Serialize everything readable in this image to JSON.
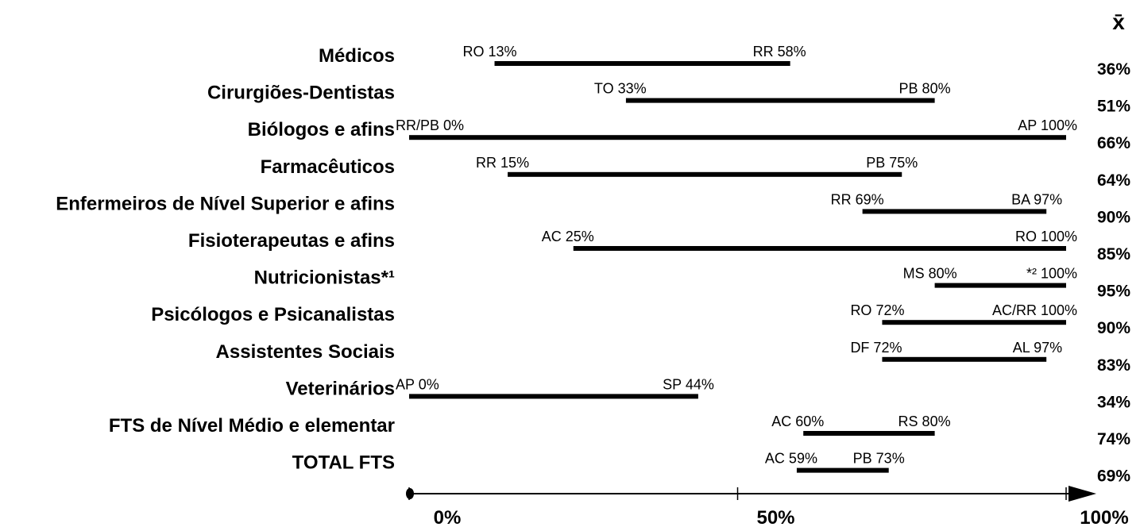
{
  "chart_data": {
    "type": "range",
    "categories": [
      "Médicos",
      "Cirurgiões-Dentistas",
      "Biólogos e afins",
      "Farmacêuticos",
      "Enfermeiros de Nível Superior e afins",
      "Fisioterapeutas e afins",
      "Nutricionistas*¹",
      "Psicólogos e Psicanalistas",
      "Assistentes Sociais",
      "Veterinários",
      "FTS de Nível Médio e elementar",
      "TOTAL FTS"
    ],
    "min_values": [
      13,
      33,
      0,
      15,
      69,
      25,
      80,
      72,
      72,
      0,
      60,
      59
    ],
    "min_labels": [
      "RO 13%",
      "TO 33%",
      "RR/PB 0%",
      "RR 15%",
      "RR 69%",
      "AC 25%",
      "MS 80%",
      "RO 72%",
      "DF 72%",
      "AP 0%",
      "AC 60%",
      "AC 59%"
    ],
    "max_values": [
      58,
      80,
      100,
      75,
      97,
      100,
      100,
      100,
      97,
      44,
      80,
      73
    ],
    "max_labels": [
      "RR 58%",
      "PB 80%",
      "AP 100%",
      "PB 75%",
      "BA 97%",
      "RO 100%",
      "*² 100%",
      "AC/RR 100%",
      "AL 97%",
      "SP 44%",
      "RS 80%",
      "PB 73%"
    ],
    "mean_header": "x̄",
    "mean_values": [
      36,
      51,
      66,
      64,
      90,
      85,
      95,
      90,
      83,
      34,
      74,
      69
    ],
    "mean_labels": [
      "36%",
      "51%",
      "66%",
      "64%",
      "90%",
      "85%",
      "95%",
      "90%",
      "83%",
      "34%",
      "74%",
      "69%"
    ],
    "color": "#000000",
    "xlim": [
      0,
      100
    ],
    "xticks": [
      {
        "value": 0,
        "label": "0%"
      },
      {
        "value": 50,
        "label": "50%"
      },
      {
        "value": 100,
        "label": "100%"
      }
    ]
  }
}
